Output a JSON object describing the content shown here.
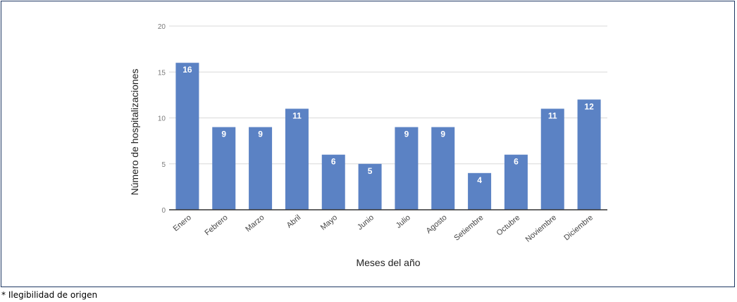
{
  "footnote": "* Ilegibilidad de origen",
  "chart_data": {
    "type": "bar",
    "categories": [
      "Enero",
      "Febrero",
      "Marzo",
      "Abril",
      "Mayo",
      "Junio",
      "Julio",
      "Agosto",
      "Setiembre",
      "Octubre",
      "Noviembre",
      "Diciembre"
    ],
    "values": [
      16,
      9,
      9,
      11,
      6,
      5,
      9,
      9,
      4,
      6,
      11,
      12
    ],
    "xlabel": "Meses del año",
    "ylabel": "Número de hospitalizaciones",
    "ylim": [
      0,
      20
    ],
    "yticks": [
      0,
      5,
      10,
      15,
      20
    ],
    "grid": true,
    "legend": "none",
    "bar_color": "#5b82c4",
    "data_labels": true
  }
}
